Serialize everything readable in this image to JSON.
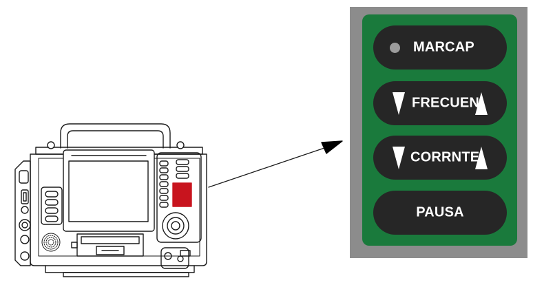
{
  "control_panel": {
    "colors": {
      "panel_bezel": "#8c8c8c",
      "panel_face": "#1a7a3c",
      "button_fill": "#262626",
      "button_text": "#ffffff",
      "indicator_led": "#9c9c9c",
      "highlight": "#c8141e"
    },
    "buttons": [
      {
        "label": "MARCAP",
        "indicator": "led"
      },
      {
        "label": "FRECUEN",
        "indicator": "down-up-arrows"
      },
      {
        "label": "CORRNTE",
        "indicator": "down-up-arrows"
      },
      {
        "label": "PAUSA",
        "indicator": "none"
      }
    ]
  }
}
